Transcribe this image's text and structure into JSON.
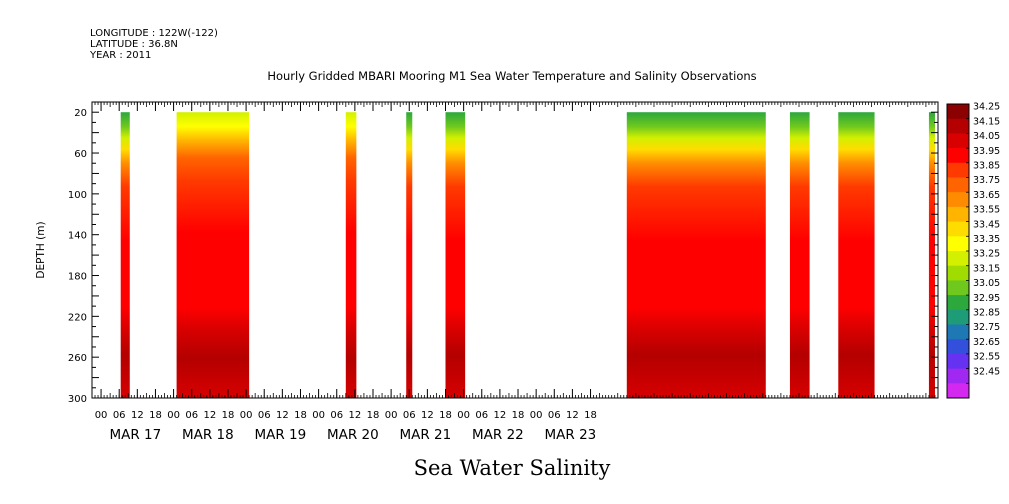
{
  "header": {
    "longitude": "LONGITUDE : 122W(-122)",
    "latitude": "LATITUDE : 36.8N",
    "year": "YEAR : 2011"
  },
  "chart_data": {
    "type": "heatmap",
    "title": "Hourly Gridded MBARI Mooring M1 Sea Water Temperature and Salinity Observations",
    "xlabel": "",
    "ylabel": "DEPTH (m)",
    "bottom_label": "Sea Water Salinity",
    "x_unit": "hours since MAR 16 21:00 (2011)",
    "xlim": [
      0,
      280
    ],
    "ylim": [
      300,
      10
    ],
    "y_ticks": [
      20,
      60,
      100,
      140,
      180,
      220,
      260,
      300
    ],
    "hour_tick_labels": [
      "00",
      "06",
      "12",
      "18",
      "00",
      "06",
      "12",
      "18",
      "00",
      "06",
      "12",
      "18",
      "00",
      "06",
      "12",
      "18",
      "00",
      "06",
      "12",
      "18",
      "00",
      "06",
      "12",
      "18",
      "00",
      "06",
      "12",
      "18"
    ],
    "day_labels": [
      "MAR 17",
      "MAR 18",
      "MAR 19",
      "MAR 20",
      "MAR 21",
      "MAR 22",
      "MAR 23"
    ],
    "colorbar": {
      "levels": [
        "34.25",
        "34.15",
        "34.05",
        "33.95",
        "33.85",
        "33.75",
        "33.65",
        "33.55",
        "33.45",
        "33.35",
        "33.25",
        "33.15",
        "33.05",
        "32.95",
        "32.85",
        "32.75",
        "32.65",
        "32.55",
        "32.45"
      ],
      "colors": [
        "#8b0000",
        "#b40000",
        "#d80000",
        "#ff0000",
        "#ff3a00",
        "#ff6400",
        "#ff8c00",
        "#ffb400",
        "#ffdc00",
        "#ffff00",
        "#d2f000",
        "#a0dc00",
        "#6ec81e",
        "#2ca83c",
        "#1e9c78",
        "#1e78b4",
        "#3250dc",
        "#6432f0",
        "#a028f0",
        "#d228f0"
      ]
    },
    "data_segments_hours": [
      [
        9.5,
        12.5
      ],
      [
        28,
        52
      ],
      [
        84,
        87.5
      ],
      [
        104,
        106
      ],
      [
        117,
        123.5
      ],
      [
        177,
        223
      ],
      [
        231,
        237.5
      ],
      [
        247,
        259
      ],
      [
        277,
        279
      ]
    ],
    "profile_note": "salinity increases with depth: ~33.1-33.6 at 20 m, ~33.9-34.0 near 60-100 m, ~34.05-34.1 at 140-200 m, max ~34.2-34.25 near 250 m"
  }
}
